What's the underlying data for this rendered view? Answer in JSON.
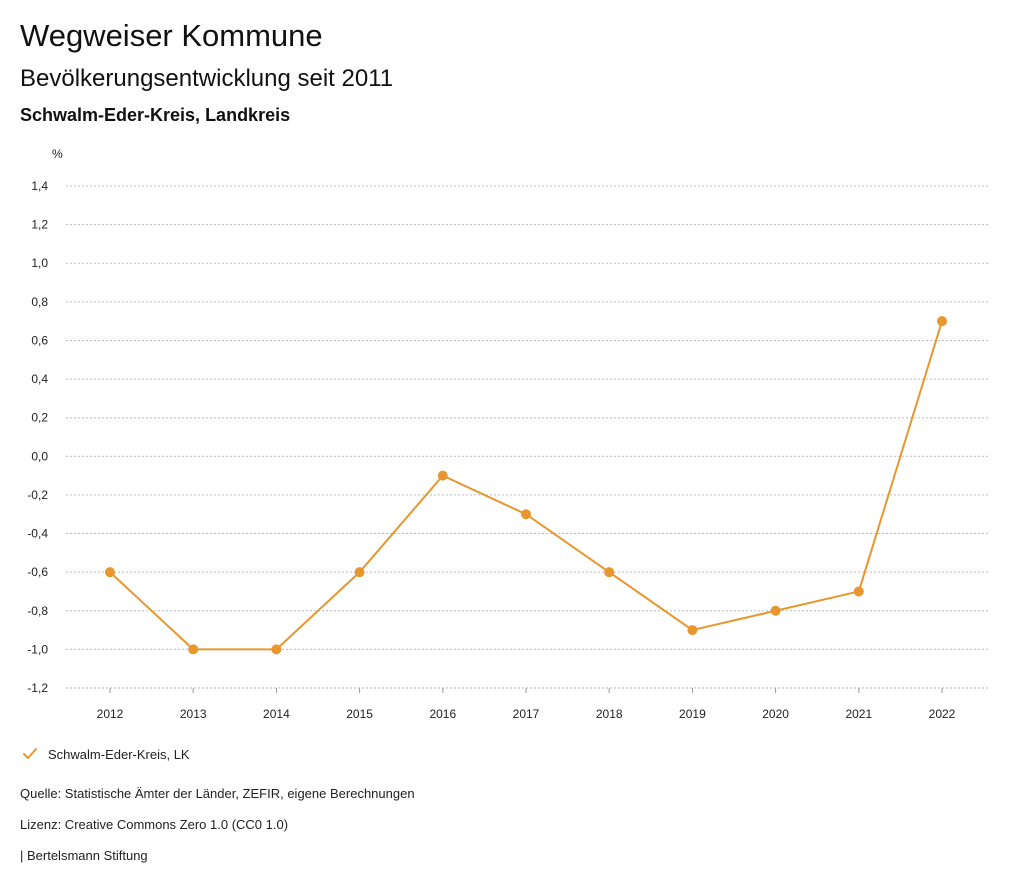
{
  "header": {
    "title": "Wegweiser Kommune",
    "subtitle": "Bevölkerungsentwicklung seit 2011",
    "region": "Schwalm-Eder-Kreis, Landkreis"
  },
  "chart_data": {
    "type": "line",
    "title": "Bevölkerungsentwicklung seit 2011",
    "xlabel": "",
    "ylabel": "%",
    "categories": [
      "2012",
      "2013",
      "2014",
      "2015",
      "2016",
      "2017",
      "2018",
      "2019",
      "2020",
      "2021",
      "2022"
    ],
    "series": [
      {
        "name": "Schwalm-Eder-Kreis, LK",
        "values": [
          -0.6,
          -1.0,
          -1.0,
          -0.6,
          -0.1,
          -0.3,
          -0.6,
          -0.9,
          -0.8,
          -0.7,
          0.7
        ],
        "color": "#E8962E"
      }
    ],
    "ylim": [
      -1.2,
      1.4
    ],
    "yticks": [
      1.4,
      1.2,
      1.0,
      0.8,
      0.6,
      0.4,
      0.2,
      0.0,
      -0.2,
      -0.4,
      -0.6,
      -0.8,
      -1.0,
      -1.2
    ],
    "ytick_labels": [
      "1,4",
      "1,2",
      "1,0",
      "0,8",
      "0,6",
      "0,4",
      "0,2",
      "0,0",
      "-0,2",
      "-0,4",
      "-0,6",
      "-0,8",
      "-1,0",
      "-1,2"
    ],
    "grid": true,
    "legend_position": "bottom-left"
  },
  "legend": {
    "label": "Schwalm-Eder-Kreis, LK"
  },
  "footer": {
    "source": "Quelle: Statistische Ämter der Länder, ZEFIR, eigene Berechnungen",
    "license": "Lizenz: Creative Commons Zero 1.0 (CC0 1.0)",
    "publisher": "| Bertelsmann Stiftung"
  },
  "colors": {
    "series": "#E8962E",
    "grid": "#bbbbbb",
    "text": "#222222"
  }
}
